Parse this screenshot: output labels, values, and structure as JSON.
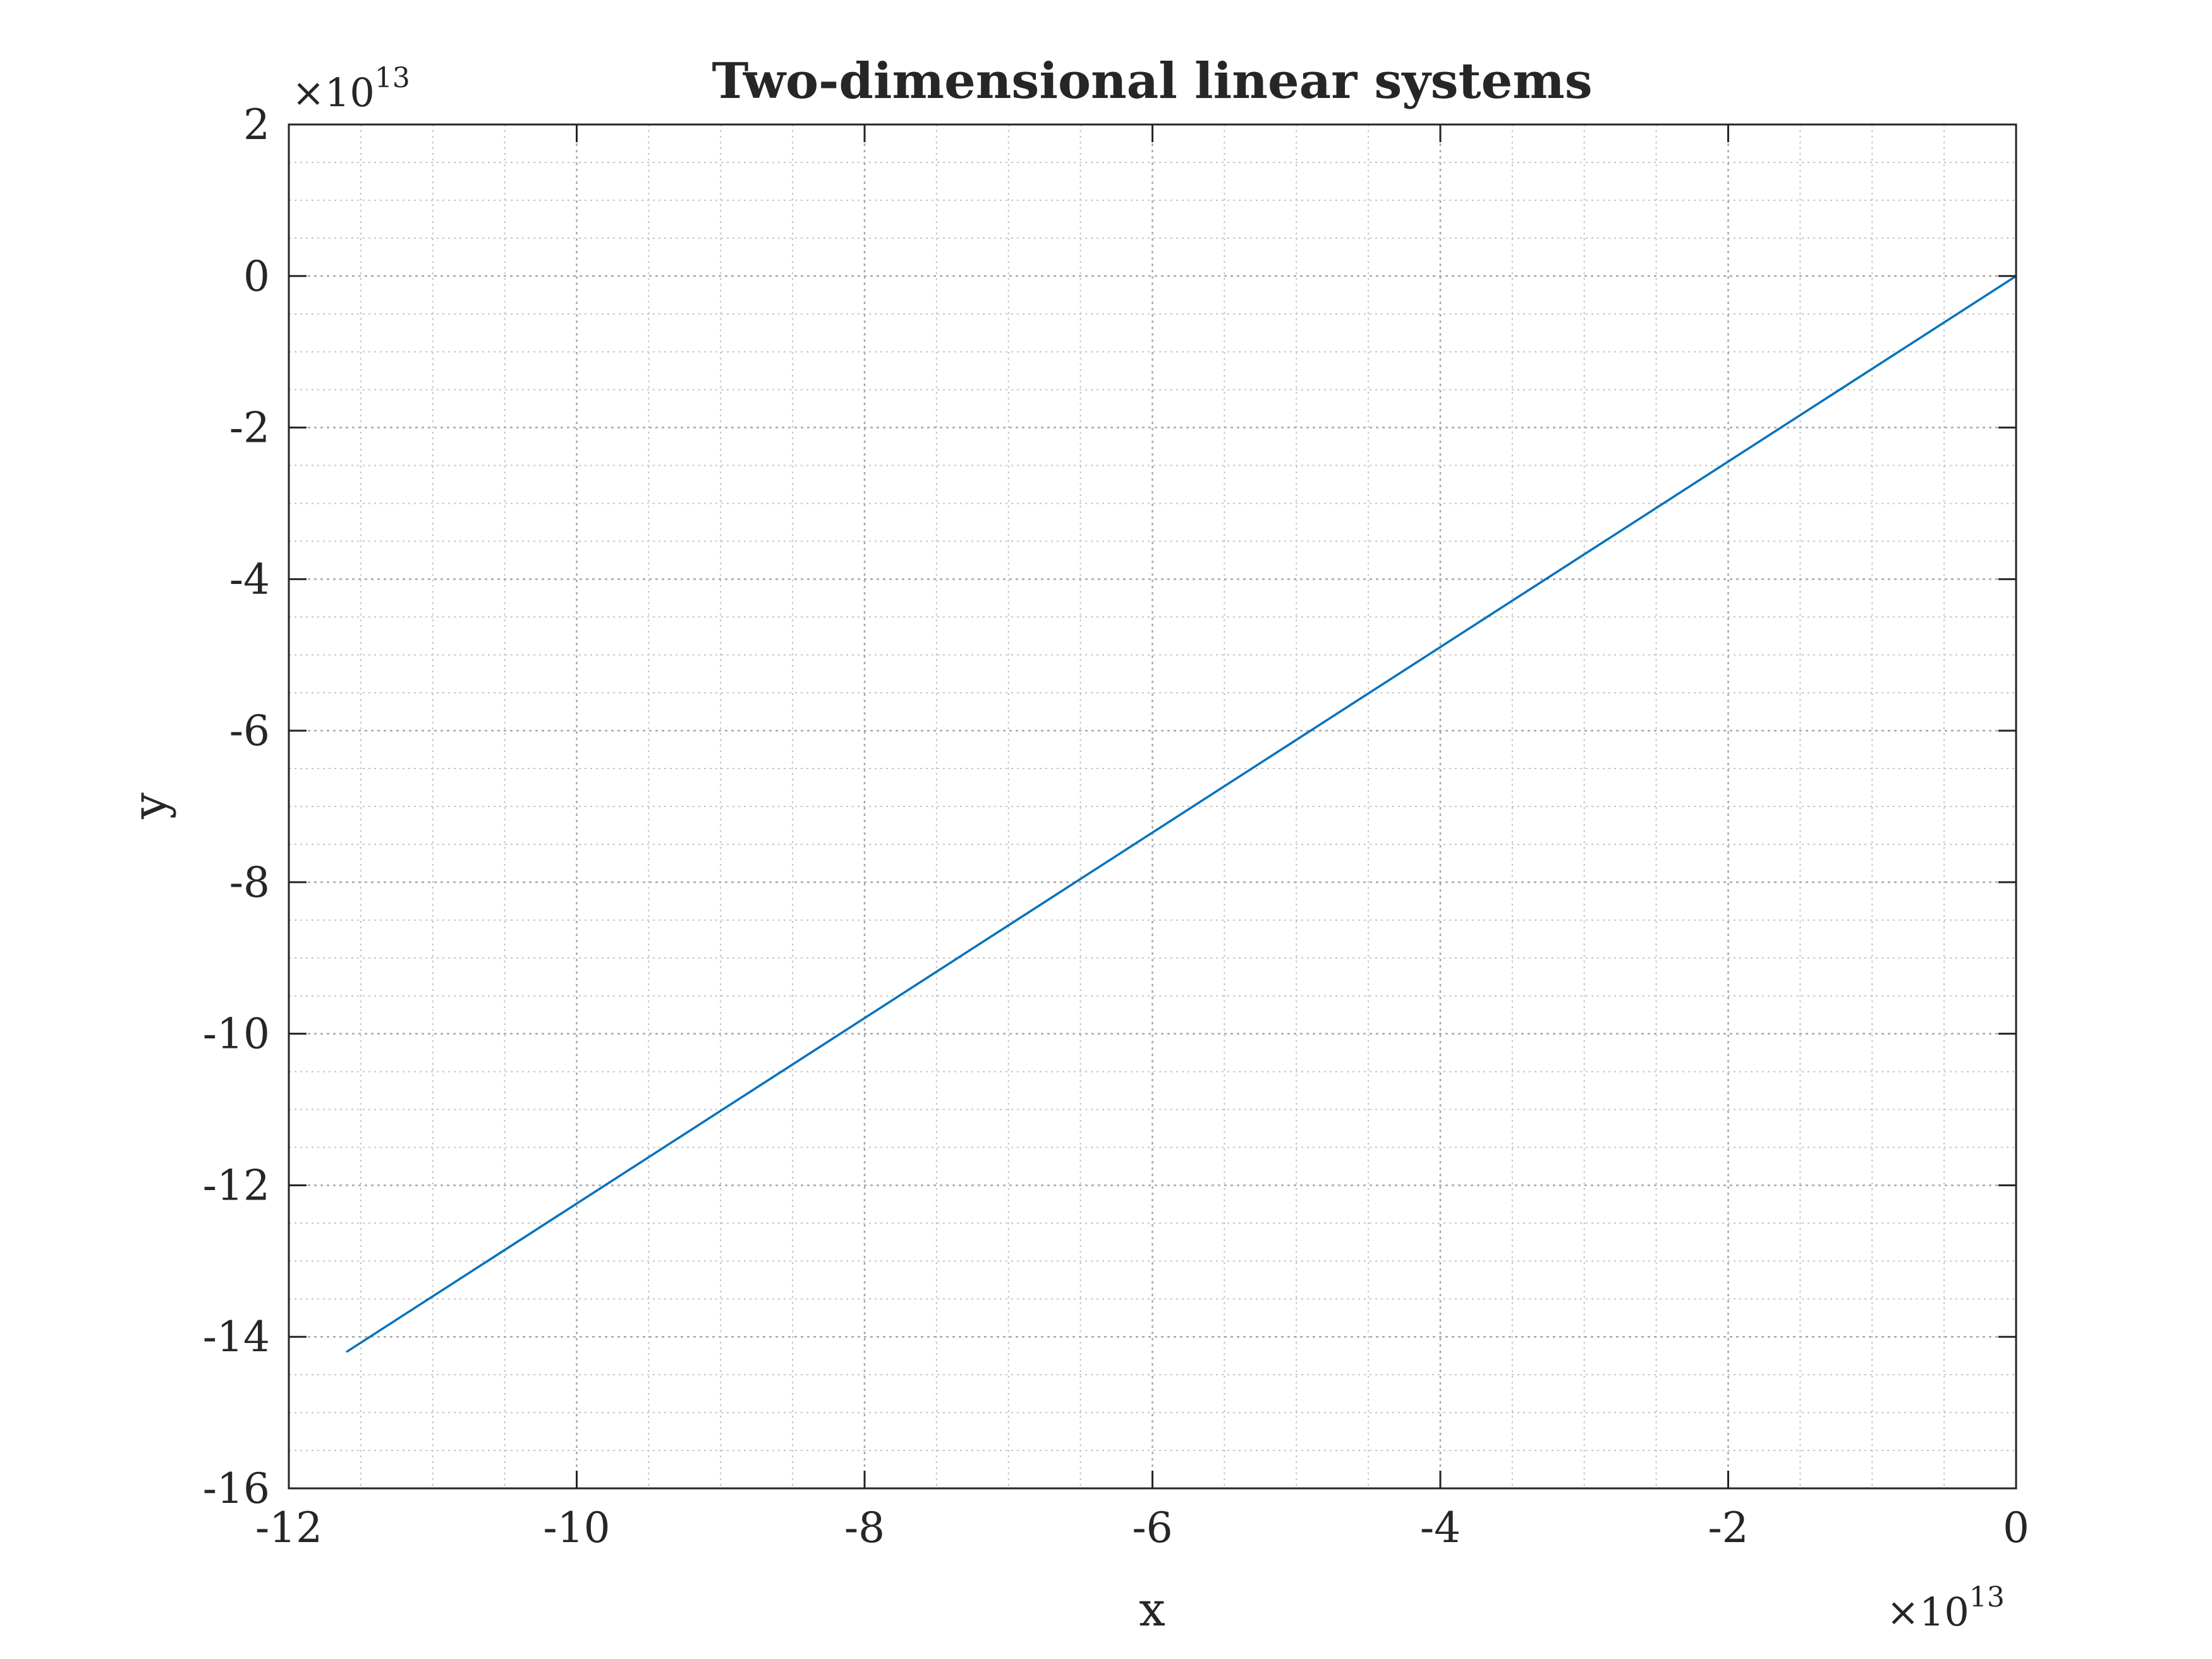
{
  "chart_data": {
    "type": "line",
    "title": "Two-dimensional linear systems",
    "xlabel": "x",
    "ylabel": "y",
    "x_exponent": {
      "times": "×10",
      "power": "13"
    },
    "y_exponent": {
      "times": "×10",
      "power": "13"
    },
    "xlim": [
      -12,
      0
    ],
    "ylim": [
      -16,
      2
    ],
    "x_ticks": [
      -12,
      -10,
      -8,
      -6,
      -4,
      -2,
      0
    ],
    "y_ticks": [
      2,
      0,
      -2,
      -4,
      -6,
      -8,
      -10,
      -12,
      -14,
      -16
    ],
    "x_minor_step": 0.5,
    "y_minor_step": 0.5,
    "grid": true,
    "minor_grid": true,
    "series": [
      {
        "color": "#0072BD",
        "x": [
          -11.6,
          0
        ],
        "y": [
          -14.2,
          0
        ]
      }
    ]
  }
}
